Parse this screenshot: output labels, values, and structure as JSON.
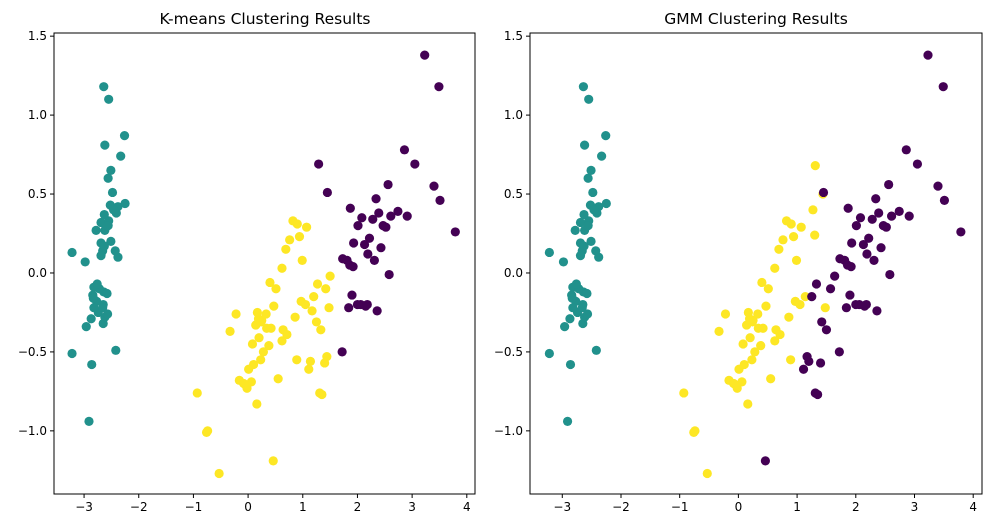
{
  "colors": {
    "cluster_0": "#440154",
    "cluster_1": "#21918c",
    "cluster_2": "#fde725",
    "axes": "#000000",
    "background": "#ffffff"
  },
  "chart_data": [
    {
      "type": "scatter",
      "title": "K-means Clustering Results",
      "xlabel": "",
      "ylabel": "",
      "xlim": [
        -3.55,
        4.15
      ],
      "ylim": [
        -1.4,
        1.52
      ],
      "xticks": [
        -3,
        -2,
        -1,
        0,
        1,
        2,
        3,
        4
      ],
      "xtick_labels": [
        "−3",
        "−2",
        "−1",
        "0",
        "1",
        "2",
        "3",
        "4"
      ],
      "yticks": [
        -1.0,
        -0.5,
        0.0,
        0.5,
        1.0,
        1.5
      ],
      "ytick_labels": [
        "−1.0",
        "−0.5",
        "0.0",
        "0.5",
        "1.0",
        "1.5"
      ],
      "grid": false,
      "legend": "none",
      "series": [
        {
          "color_key": "cluster_1",
          "x": [
            -3.22,
            -2.98,
            -2.86,
            -2.82,
            -2.84,
            -2.65,
            -2.65,
            -2.69,
            -2.62,
            -2.55,
            -2.63,
            -2.56,
            -2.52,
            -2.45,
            -2.41,
            -2.38,
            -2.33,
            -2.26,
            -2.25,
            -2.96,
            -3.22,
            -2.42,
            -2.64,
            -2.55,
            -2.62,
            -2.56,
            -2.51,
            -2.48,
            -2.46,
            -2.38,
            -2.64,
            -2.72,
            -2.74,
            -2.62,
            -2.66,
            -2.51,
            -2.43,
            -2.66,
            -2.69,
            -2.76,
            -2.77,
            -2.57,
            -2.58,
            -2.63,
            -2.69,
            -2.78,
            -2.83,
            -2.82,
            -2.87,
            -2.91
          ],
          "y": [
            0.13,
            0.07,
            -0.58,
            -0.09,
            -0.14,
            -0.2,
            -0.32,
            0.32,
            0.27,
            0.33,
            0.37,
            0.3,
            0.43,
            0.4,
            0.38,
            0.42,
            0.74,
            0.87,
            0.44,
            -0.34,
            -0.51,
            -0.49,
            1.18,
            1.1,
            0.81,
            0.6,
            0.65,
            0.51,
            0.4,
            0.1,
            -0.12,
            -0.1,
            -0.25,
            -0.28,
            -0.22,
            0.2,
            0.14,
            0.14,
            0.19,
            -0.07,
            -0.18,
            -0.26,
            -0.13,
            0.17,
            0.11,
            0.27,
            -0.16,
            -0.22,
            -0.29,
            -0.94
          ]
        },
        {
          "color_key": "cluster_2",
          "x": [
            -0.93,
            -0.76,
            -0.53,
            -0.74,
            -0.33,
            -0.22,
            -0.16,
            0.06,
            0.16,
            0.1,
            0.23,
            0.28,
            0.34,
            0.14,
            0.19,
            0.4,
            0.51,
            0.47,
            0.62,
            0.69,
            0.76,
            0.82,
            0.9,
            0.94,
            0.99,
            1.07,
            1.11,
            1.14,
            1.2,
            1.27,
            1.35,
            1.31,
            1.4,
            1.44,
            1.48,
            0.17,
            0.2,
            0.25,
            0.33,
            0.38,
            0.42,
            0.55,
            0.64,
            0.71,
            0.86,
            0.89,
            0.97,
            1.05,
            1.17,
            1.25,
            1.33,
            1.42,
            1.5,
            0.62,
            -0.08,
            -0.02,
            0.08,
            0.01,
            0.24,
            0.46
          ],
          "y": [
            -0.76,
            -1.01,
            -1.27,
            -1.0,
            -0.37,
            -0.26,
            -0.68,
            -0.69,
            -0.83,
            -0.58,
            -0.55,
            -0.5,
            -0.35,
            -0.33,
            -0.29,
            -0.06,
            -0.1,
            -0.21,
            0.03,
            0.15,
            0.21,
            0.33,
            0.31,
            0.23,
            0.08,
            0.29,
            -0.61,
            -0.56,
            -0.15,
            -0.07,
            -0.77,
            -0.76,
            -0.57,
            -0.53,
            -0.22,
            -0.25,
            -0.41,
            -0.3,
            -0.26,
            -0.46,
            -0.35,
            -0.67,
            -0.36,
            -0.39,
            -0.28,
            -0.55,
            -0.18,
            -0.2,
            -0.24,
            -0.31,
            -0.36,
            -0.1,
            -0.02,
            -0.43,
            -0.7,
            -0.73,
            -0.45,
            -0.61,
            -0.31,
            -1.19
          ]
        },
        {
          "color_key": "cluster_0",
          "x": [
            1.29,
            1.45,
            1.73,
            1.81,
            1.86,
            1.92,
            2.01,
            2.08,
            2.13,
            2.19,
            2.28,
            2.34,
            2.39,
            2.47,
            2.56,
            2.61,
            2.74,
            2.86,
            2.91,
            3.05,
            3.23,
            3.4,
            3.49,
            3.51,
            3.79,
            1.72,
            1.84,
            1.9,
            2.0,
            2.15,
            2.22,
            2.31,
            2.43,
            2.58,
            1.87,
            1.93,
            2.06,
            2.18,
            2.36,
            2.52
          ],
          "y": [
            0.69,
            0.51,
            0.09,
            0.08,
            0.05,
            0.04,
            0.3,
            0.35,
            0.18,
            0.12,
            0.34,
            0.47,
            0.38,
            0.3,
            0.56,
            0.36,
            0.39,
            0.78,
            0.36,
            0.69,
            1.38,
            0.55,
            1.18,
            0.46,
            0.26,
            -0.5,
            -0.22,
            -0.14,
            -0.2,
            -0.21,
            0.22,
            0.08,
            0.16,
            -0.01,
            0.41,
            0.19,
            -0.2,
            -0.2,
            -0.24,
            0.29
          ]
        }
      ]
    },
    {
      "type": "scatter",
      "title": "GMM Clustering Results",
      "xlabel": "",
      "ylabel": "",
      "xlim": [
        -3.55,
        4.15
      ],
      "ylim": [
        -1.4,
        1.52
      ],
      "xticks": [
        -3,
        -2,
        -1,
        0,
        1,
        2,
        3,
        4
      ],
      "xtick_labels": [
        "−3",
        "−2",
        "−1",
        "0",
        "1",
        "2",
        "3",
        "4"
      ],
      "yticks": [
        -1.0,
        -0.5,
        0.0,
        0.5,
        1.0,
        1.5
      ],
      "ytick_labels": [
        "−1.0",
        "−0.5",
        "0.0",
        "0.5",
        "1.0",
        "1.5"
      ],
      "grid": false,
      "legend": "none",
      "series": [
        {
          "color_key": "cluster_1",
          "x": [
            -3.22,
            -2.98,
            -2.86,
            -2.82,
            -2.84,
            -2.65,
            -2.65,
            -2.69,
            -2.62,
            -2.55,
            -2.63,
            -2.56,
            -2.52,
            -2.45,
            -2.41,
            -2.38,
            -2.33,
            -2.26,
            -2.25,
            -2.96,
            -3.22,
            -2.42,
            -2.64,
            -2.55,
            -2.62,
            -2.56,
            -2.51,
            -2.48,
            -2.46,
            -2.38,
            -2.64,
            -2.72,
            -2.74,
            -2.62,
            -2.66,
            -2.51,
            -2.43,
            -2.66,
            -2.69,
            -2.76,
            -2.77,
            -2.57,
            -2.58,
            -2.63,
            -2.69,
            -2.78,
            -2.83,
            -2.82,
            -2.87,
            -2.91
          ],
          "y": [
            0.13,
            0.07,
            -0.58,
            -0.09,
            -0.14,
            -0.2,
            -0.32,
            0.32,
            0.27,
            0.33,
            0.37,
            0.3,
            0.43,
            0.4,
            0.38,
            0.42,
            0.74,
            0.87,
            0.44,
            -0.34,
            -0.51,
            -0.49,
            1.18,
            1.1,
            0.81,
            0.6,
            0.65,
            0.51,
            0.4,
            0.1,
            -0.12,
            -0.1,
            -0.25,
            -0.28,
            -0.22,
            0.2,
            0.14,
            0.14,
            0.19,
            -0.07,
            -0.18,
            -0.26,
            -0.13,
            0.17,
            0.11,
            0.27,
            -0.16,
            -0.22,
            -0.29,
            -0.94
          ]
        },
        {
          "color_key": "cluster_2",
          "x": [
            -0.93,
            -0.76,
            -0.53,
            -0.74,
            -0.33,
            -0.22,
            -0.16,
            0.06,
            0.16,
            0.1,
            0.23,
            0.28,
            0.34,
            0.14,
            0.19,
            0.4,
            0.51,
            0.47,
            0.62,
            0.69,
            0.76,
            0.82,
            0.9,
            0.94,
            0.99,
            1.07,
            1.14,
            1.27,
            1.31,
            1.44,
            0.17,
            0.2,
            0.25,
            0.33,
            0.38,
            0.42,
            0.55,
            0.64,
            0.71,
            0.86,
            0.89,
            0.97,
            1.05,
            -0.08,
            -0.02,
            0.08,
            0.01,
            0.24,
            0.62,
            1.3,
            1.48
          ],
          "y": [
            -0.76,
            -1.01,
            -1.27,
            -1.0,
            -0.37,
            -0.26,
            -0.68,
            -0.69,
            -0.83,
            -0.58,
            -0.55,
            -0.5,
            -0.35,
            -0.33,
            -0.29,
            -0.06,
            -0.1,
            -0.21,
            0.03,
            0.15,
            0.21,
            0.33,
            0.31,
            0.23,
            0.08,
            0.29,
            -0.15,
            0.4,
            0.68,
            0.5,
            -0.25,
            -0.41,
            -0.3,
            -0.26,
            -0.46,
            -0.35,
            -0.67,
            -0.36,
            -0.39,
            -0.28,
            -0.55,
            -0.18,
            -0.2,
            -0.7,
            -0.73,
            -0.45,
            -0.61,
            -0.31,
            -0.43,
            0.24,
            -0.22
          ]
        },
        {
          "color_key": "cluster_0",
          "x": [
            1.45,
            1.73,
            1.81,
            1.86,
            1.92,
            2.01,
            2.08,
            2.13,
            2.19,
            2.28,
            2.34,
            2.39,
            2.47,
            2.56,
            2.61,
            2.74,
            2.86,
            2.91,
            3.05,
            3.23,
            3.4,
            3.49,
            3.51,
            3.79,
            1.72,
            1.84,
            1.9,
            2.0,
            2.15,
            2.22,
            2.31,
            2.43,
            2.58,
            1.87,
            1.93,
            2.06,
            2.18,
            2.36,
            2.52,
            1.11,
            1.2,
            1.25,
            1.33,
            1.35,
            1.31,
            1.4,
            1.17,
            1.42,
            1.5,
            1.57,
            1.64,
            0.46
          ],
          "y": [
            0.51,
            0.09,
            0.08,
            0.05,
            0.04,
            0.3,
            0.35,
            0.18,
            0.12,
            0.34,
            0.47,
            0.38,
            0.3,
            0.56,
            0.36,
            0.39,
            0.78,
            0.36,
            0.69,
            1.38,
            0.55,
            1.18,
            0.46,
            0.26,
            -0.5,
            -0.22,
            -0.14,
            -0.2,
            -0.21,
            0.22,
            0.08,
            0.16,
            -0.01,
            0.41,
            0.19,
            -0.2,
            -0.2,
            -0.24,
            0.29,
            -0.61,
            -0.56,
            -0.15,
            -0.07,
            -0.77,
            -0.76,
            -0.57,
            -0.53,
            -0.31,
            -0.36,
            -0.1,
            -0.02,
            -1.19
          ]
        }
      ]
    }
  ]
}
